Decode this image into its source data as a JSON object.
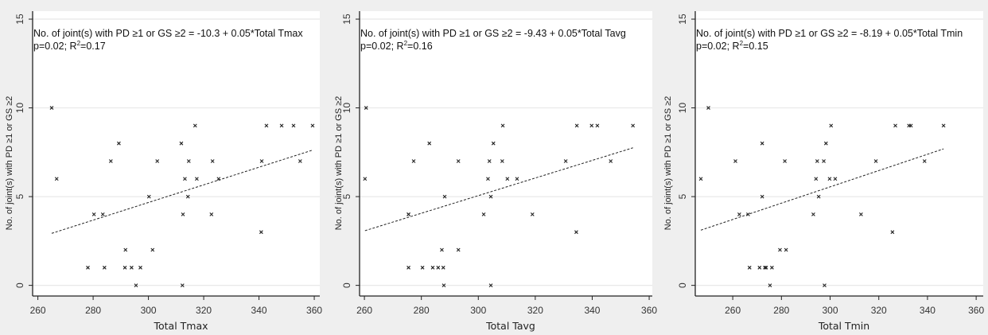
{
  "chart_data": [
    {
      "type": "scatter",
      "xlabel": "Total Tmax",
      "ylabel": "No. of joint(s) with PD ≥1 or GS ≥2",
      "annotation_line1": "No. of joint(s) with PD ≥1 or GS ≥2 = -10.3 + 0.05*Total Tmax",
      "annotation_p": "p=0.02; R",
      "annotation_sup": "2",
      "annotation_r2": "=0.17",
      "xticks": [
        "260",
        "280",
        "300",
        "320",
        "340",
        "360"
      ],
      "yticks": [
        "0",
        "5",
        "10",
        "15"
      ],
      "xlim": [
        258.1,
        362.0
      ],
      "ylim": [
        -0.6,
        15.45
      ],
      "grid": true,
      "x": [
        265.0,
        266.8,
        278.1,
        280.3,
        283.5,
        284.1,
        286.4,
        289.3,
        291.5,
        291.7,
        293.9,
        295.5,
        297.1,
        300.2,
        301.5,
        303.2,
        311.9,
        312.3,
        312.5,
        313.2,
        314.3,
        314.6,
        316.9,
        317.5,
        322.8,
        323.2,
        325.4,
        340.8,
        341.0,
        342.7,
        348.2,
        352.5,
        354.9,
        359.4
      ],
      "y": [
        10,
        6,
        1,
        4,
        4,
        1,
        7,
        8,
        1,
        2,
        1,
        0,
        1,
        5,
        2,
        7,
        8,
        0,
        4,
        6,
        5,
        7,
        9,
        6,
        4,
        7,
        6,
        3,
        7,
        9,
        9,
        9,
        7,
        9
      ],
      "fit_line": {
        "x": [
          265.0,
          359.4
        ],
        "y": [
          2.93,
          7.62
        ]
      }
    },
    {
      "type": "scatter",
      "xlabel": "Total Tavg",
      "ylabel": "No. of joint(s) with PD ≥1 or GS ≥2",
      "annotation_line1": "No. of joint(s) with PD ≥1 or GS ≥2 = -9.43 + 0.05*Total Tavg",
      "annotation_p": "p=0.02; R",
      "annotation_sup": "2",
      "annotation_r2": "=0.16",
      "xticks": [
        "260",
        "280",
        "300",
        "320",
        "340",
        "360"
      ],
      "yticks": [
        "0",
        "5",
        "10",
        "15"
      ],
      "xlim": [
        258.3,
        361.1
      ],
      "ylim": [
        -0.6,
        15.45
      ],
      "grid": true,
      "x": [
        260.6,
        260.2,
        275.5,
        275.5,
        275.5,
        277.3,
        280.4,
        282.8,
        284.0,
        285.9,
        287.2,
        287.7,
        287.9,
        288.2,
        293.0,
        293.0,
        301.9,
        303.4,
        303.9,
        304.4,
        304.4,
        305.3,
        308.4,
        308.6,
        310.2,
        313.6,
        319.0,
        330.7,
        334.4,
        334.6,
        339.8,
        341.8,
        346.5,
        354.3
      ],
      "y": [
        10,
        6,
        4,
        4,
        1,
        7,
        1,
        8,
        1,
        1,
        2,
        1,
        0,
        5,
        7,
        2,
        4,
        6,
        7,
        5,
        0,
        8,
        7,
        9,
        6,
        6,
        4,
        7,
        3,
        9,
        9,
        9,
        7,
        9
      ],
      "fit_line": {
        "x": [
          260.2,
          354.3
        ],
        "y": [
          3.08,
          7.75
        ]
      }
    },
    {
      "type": "scatter",
      "xlabel": "Total Tmin",
      "ylabel": "No. of joint(s) with PD ≥1 or GS ≥2",
      "annotation_line1": "No. of joint(s) with PD ≥1 or GS ≥2 = -8.19 + 0.05*Total Tmin",
      "annotation_p": "p=0.02; R",
      "annotation_sup": "2",
      "annotation_r2": "=0.15",
      "xticks": [
        "260",
        "280",
        "300",
        "320",
        "340",
        "360"
      ],
      "yticks": [
        "0",
        "5",
        "10",
        "15"
      ],
      "xlim": [
        244.6,
        362.9
      ],
      "ylim": [
        -0.6,
        15.45
      ],
      "grid": true,
      "x": [
        246.9,
        250.0,
        261.1,
        262.7,
        266.3,
        266.9,
        271.0,
        272.1,
        272.1,
        273.2,
        273.7,
        275.3,
        276.1,
        279.4,
        281.4,
        281.9,
        293.1,
        294.2,
        294.7,
        295.3,
        297.4,
        297.7,
        298.3,
        299.8,
        300.4,
        302.1,
        312.7,
        318.8,
        325.6,
        326.8,
        332.4,
        333.2,
        338.8,
        346.6
      ],
      "y": [
        6,
        10,
        7,
        4,
        4,
        1,
        1,
        8,
        5,
        1,
        1,
        0,
        1,
        2,
        7,
        2,
        4,
        6,
        7,
        5,
        7,
        0,
        8,
        6,
        9,
        6,
        4,
        7,
        3,
        9,
        9,
        9,
        7,
        9
      ],
      "fit_line": {
        "x": [
          246.9,
          346.6
        ],
        "y": [
          3.11,
          7.69
        ]
      }
    }
  ]
}
